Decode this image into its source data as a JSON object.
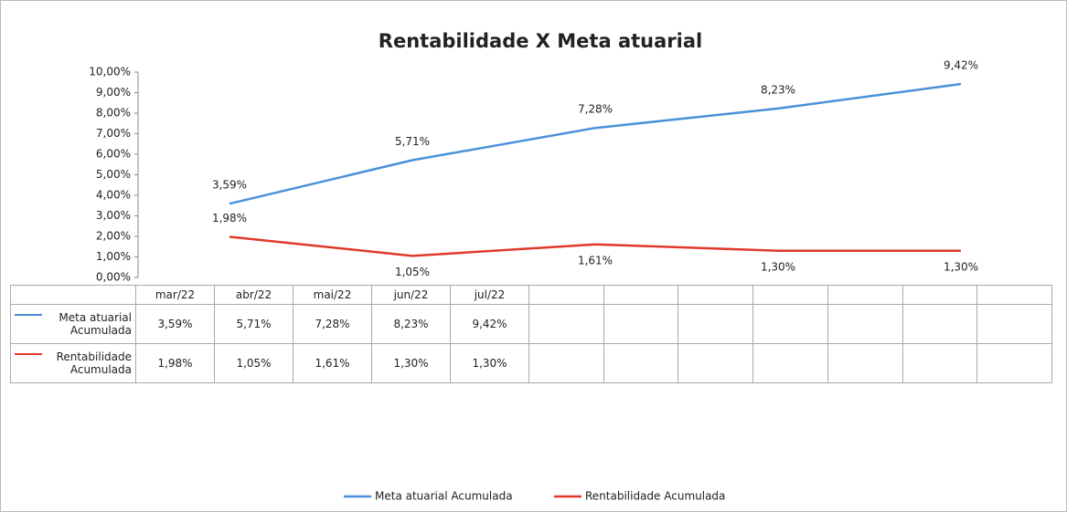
{
  "chart_data": {
    "type": "line",
    "title": "Rentabilidade X Meta atuarial",
    "categories": [
      "mar/22",
      "abr/22",
      "mai/22",
      "jun/22",
      "jul/22"
    ],
    "series": [
      {
        "name": "Meta atuarial Acumulada",
        "color": "#4a90d9",
        "values": [
          3.59,
          5.71,
          7.28,
          8.23,
          9.42
        ],
        "value_labels": [
          "3,59%",
          "5,71%",
          "7,28%",
          "8,23%",
          "9,42%"
        ]
      },
      {
        "name": "Rentabilidade Acumulada",
        "color": "#e0392b",
        "values": [
          1.98,
          1.05,
          1.61,
          1.3,
          1.3
        ],
        "value_labels": [
          "1,98%",
          "1,05%",
          "1,61%",
          "1,30%",
          "1,30%"
        ]
      }
    ],
    "ylim": [
      0,
      10
    ],
    "yticks": [
      {
        "value": 0,
        "label": "0,00%"
      },
      {
        "value": 1,
        "label": "1,00%"
      },
      {
        "value": 2,
        "label": "2,00%"
      },
      {
        "value": 3,
        "label": "3,00%"
      },
      {
        "value": 4,
        "label": "4,00%"
      },
      {
        "value": 5,
        "label": "5,00%"
      },
      {
        "value": 6,
        "label": "6,00%"
      },
      {
        "value": 7,
        "label": "7,00%"
      },
      {
        "value": 8,
        "label": "8,00%"
      },
      {
        "value": 9,
        "label": "9,00%"
      },
      {
        "value": 10,
        "label": "10,00%"
      }
    ],
    "grid": false,
    "legend": "bottom"
  }
}
